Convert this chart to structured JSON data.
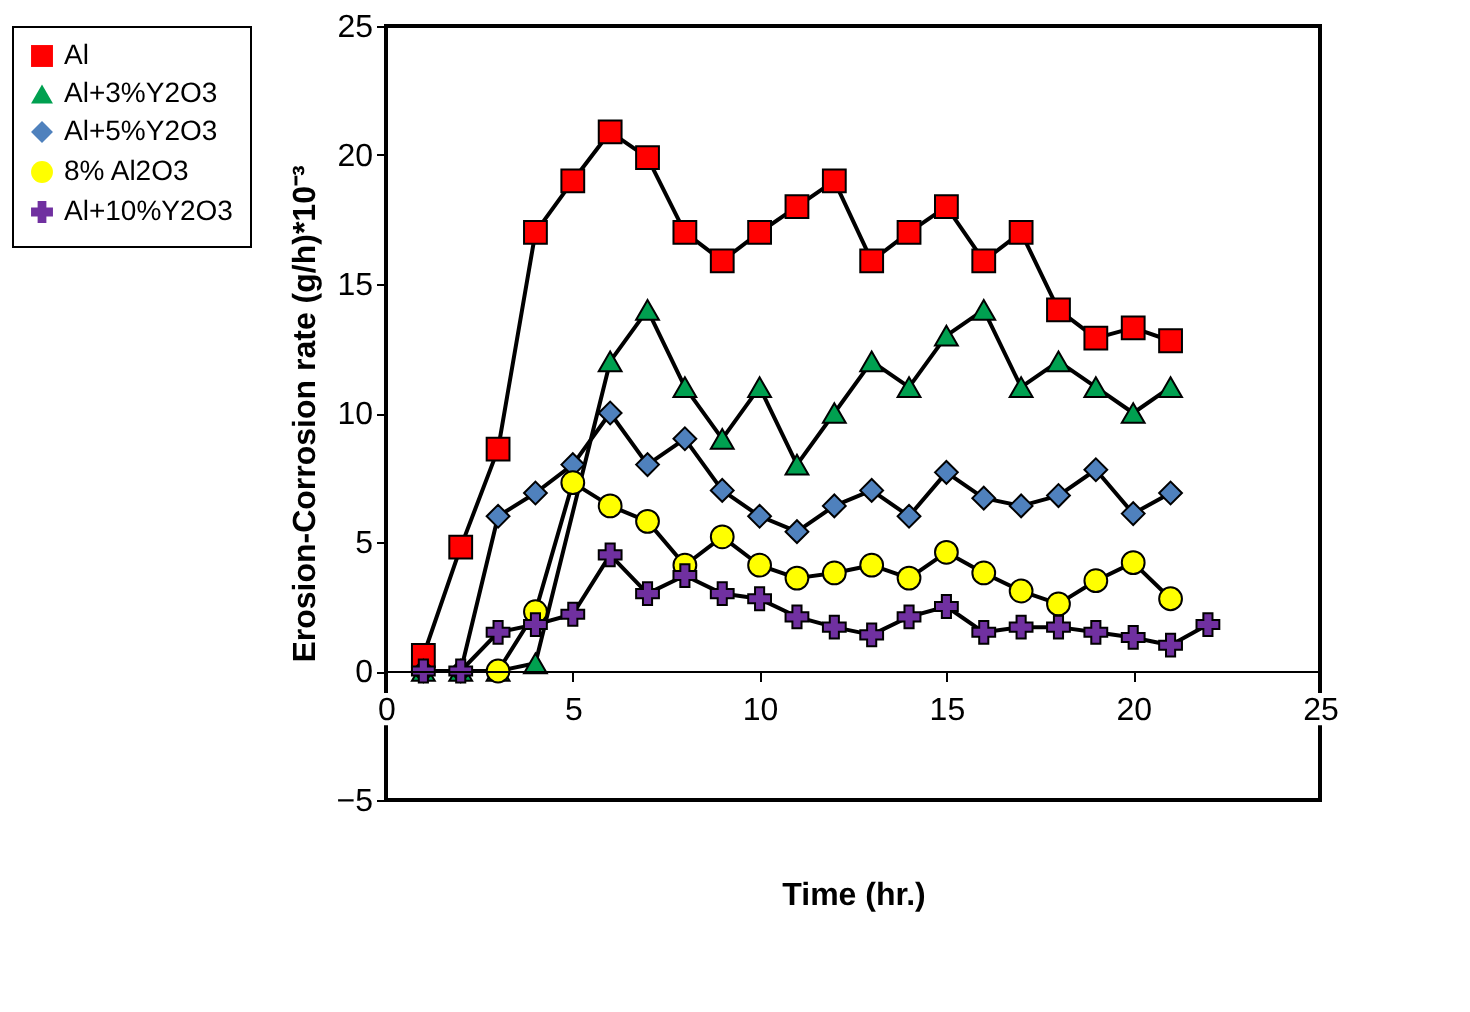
{
  "chart_data": {
    "type": "line",
    "xlabel": "Time (hr.)",
    "ylabel": "Erosion-Corrosion rate  (g/h)*10⁻³",
    "xlim": [
      0,
      25
    ],
    "xticks": [
      0,
      5,
      10,
      15,
      20,
      25
    ],
    "ylim": [
      -5,
      25
    ],
    "yticks": [
      -5,
      0,
      5,
      10,
      15,
      20,
      25
    ],
    "grid": false,
    "legend": "left",
    "line_style": "solid",
    "series": [
      {
        "name": "Al",
        "color": "#ff0000",
        "marker": "square",
        "x": [
          1,
          2,
          3,
          4,
          5,
          6,
          7,
          8,
          9,
          10,
          11,
          12,
          13,
          14,
          15,
          16,
          17,
          18,
          19,
          20,
          21
        ],
        "values": [
          0.6,
          4.8,
          8.6,
          17,
          19,
          20.9,
          19.9,
          17,
          15.9,
          17,
          18,
          19,
          15.9,
          17,
          18,
          15.9,
          17,
          14,
          12.9,
          13.3,
          12.8
        ]
      },
      {
        "name": "Al+3%Y2O3",
        "color": "#00a050",
        "marker": "triangle",
        "x": [
          1,
          2,
          3,
          4,
          5,
          6,
          7,
          8,
          9,
          10,
          11,
          12,
          13,
          14,
          15,
          16,
          17,
          18,
          19,
          20,
          21
        ],
        "values": [
          0,
          0,
          0,
          0.3,
          null,
          12,
          14,
          11,
          9,
          11,
          8,
          10,
          12,
          11,
          13,
          14,
          11,
          12,
          11,
          10,
          11
        ]
      },
      {
        "name": "Al+5%Y2O3",
        "color": "#4f81bd",
        "marker": "diamond",
        "x": [
          1,
          2,
          3,
          4,
          5,
          6,
          7,
          8,
          9,
          10,
          11,
          12,
          13,
          14,
          15,
          16,
          17,
          18,
          19,
          20,
          21
        ],
        "values": [
          0,
          0,
          6,
          6.9,
          8,
          10,
          8,
          9,
          7,
          6,
          5.4,
          6.4,
          7,
          6,
          7.7,
          6.7,
          6.4,
          6.8,
          7.8,
          6.1,
          6.9
        ]
      },
      {
        "name": "8% Al2O3",
        "color": "#ffff00",
        "marker": "circle",
        "x": [
          3,
          4,
          5,
          6,
          7,
          8,
          9,
          10,
          11,
          12,
          13,
          14,
          15,
          16,
          17,
          18,
          19,
          20,
          21
        ],
        "values": [
          0,
          2.3,
          7.3,
          6.4,
          5.8,
          4.1,
          5.2,
          4.1,
          3.6,
          3.8,
          4.1,
          3.6,
          4.6,
          3.8,
          3.1,
          2.6,
          3.5,
          4.2,
          2.8
        ]
      },
      {
        "name": "Al+10%Y2O3",
        "color": "#7030a0",
        "marker": "cross",
        "x": [
          1,
          2,
          3,
          4,
          5,
          6,
          7,
          8,
          9,
          10,
          11,
          12,
          13,
          14,
          15,
          16,
          17,
          18,
          19,
          20,
          21,
          22
        ],
        "values": [
          0,
          0,
          1.5,
          1.8,
          2.2,
          4.5,
          3,
          3.7,
          3,
          2.8,
          2.1,
          1.7,
          1.4,
          2.1,
          2.5,
          1.5,
          1.7,
          1.7,
          1.5,
          1.3,
          1,
          1.8
        ]
      }
    ]
  }
}
